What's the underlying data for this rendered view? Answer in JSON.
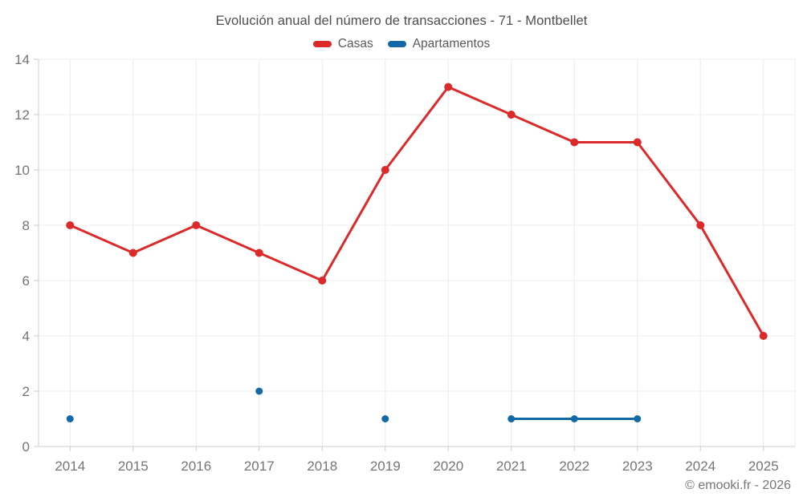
{
  "title": "Evolución anual del número de transacciones - 71 - Montbellet",
  "footer": "© emooki.fr - 2026",
  "colors": {
    "casas": "#dc2a2b",
    "apartamentos": "#1269a5",
    "grid": "#ececec",
    "axis": "#cccccc",
    "tick_label": "#757575",
    "title_text": "#4d4d4d",
    "legend_text": "#595959"
  },
  "chart_data": {
    "type": "line",
    "title": "Evolución anual del número de transacciones - 71 - Montbellet",
    "categories": [
      "2014",
      "2015",
      "2016",
      "2017",
      "2018",
      "2019",
      "2020",
      "2021",
      "2022",
      "2023",
      "2024",
      "2025"
    ],
    "series": [
      {
        "name": "Casas",
        "color": "#dc2a2b",
        "values": [
          8,
          7,
          8,
          7,
          6,
          10,
          13,
          12,
          11,
          11,
          8,
          4
        ]
      },
      {
        "name": "Apartamentos",
        "color": "#1269a5",
        "values": [
          1,
          null,
          null,
          2,
          null,
          1,
          null,
          1,
          1,
          1,
          null,
          null
        ]
      }
    ],
    "xlabel": "",
    "ylabel": "",
    "ylim": [
      0,
      14
    ],
    "yticks": [
      0,
      2,
      4,
      6,
      8,
      10,
      12,
      14
    ],
    "grid": true,
    "legend_position": "top"
  }
}
